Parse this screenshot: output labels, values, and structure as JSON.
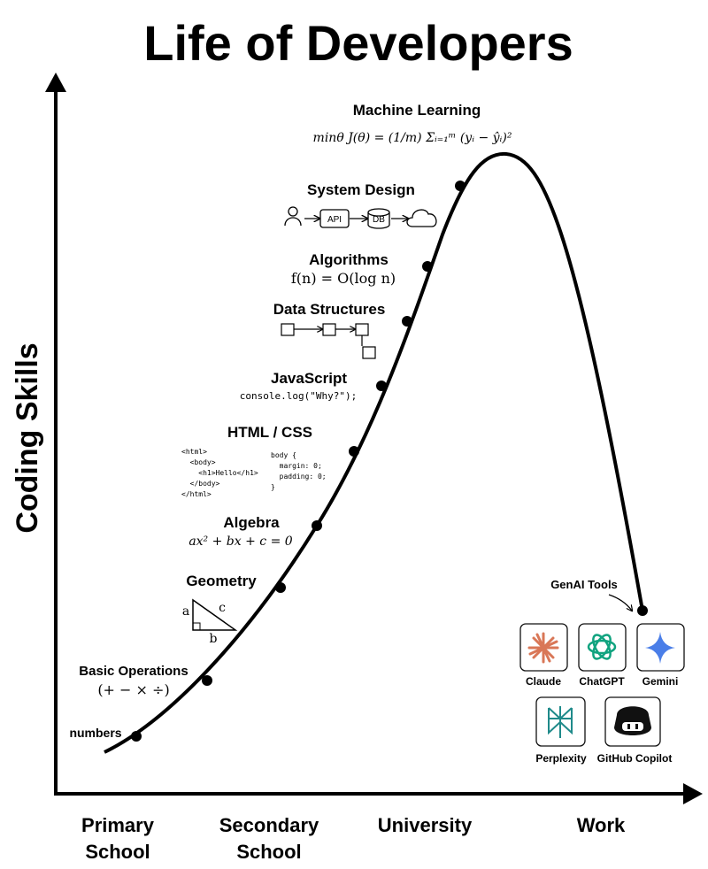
{
  "title": "Life of Developers",
  "y_axis": {
    "label": "Coding Skills"
  },
  "x_axis": {
    "labels": [
      [
        "Primary",
        "School"
      ],
      [
        "Secondary",
        "School"
      ],
      [
        "University"
      ],
      [
        "Work"
      ]
    ]
  },
  "stages": [
    {
      "label": "numbers"
    },
    {
      "label": "Basic Operations",
      "detail": "(+ − × ÷)"
    },
    {
      "label": "Geometry",
      "sides": [
        "a",
        "b",
        "c"
      ]
    },
    {
      "label": "Algebra",
      "detail": "ax² + bx + c = 0"
    },
    {
      "label": "HTML / CSS",
      "html": [
        "<html>",
        "  <body>",
        "    <h1>Hello</h1>",
        "  </body>",
        "</html>"
      ],
      "css": [
        "body {",
        "  margin: 0;",
        "  padding: 0;",
        "}"
      ]
    },
    {
      "label": "JavaScript",
      "detail": "console.log(\"Why?\");"
    },
    {
      "label": "Data Structures"
    },
    {
      "label": "Algorithms",
      "detail": "f(n) = O(log n)"
    },
    {
      "label": "System Design",
      "boxes": [
        "API",
        "DB"
      ]
    },
    {
      "label": "Machine Learning",
      "detail": "minθ J(θ) = (1/m) Σᵢ₌₁ᵐ (yᵢ − ŷᵢ)²"
    }
  ],
  "genai": {
    "label": "GenAI Tools",
    "tools": [
      "Claude",
      "ChatGPT",
      "Gemini",
      "Perplexity",
      "GitHub Copilot"
    ]
  }
}
